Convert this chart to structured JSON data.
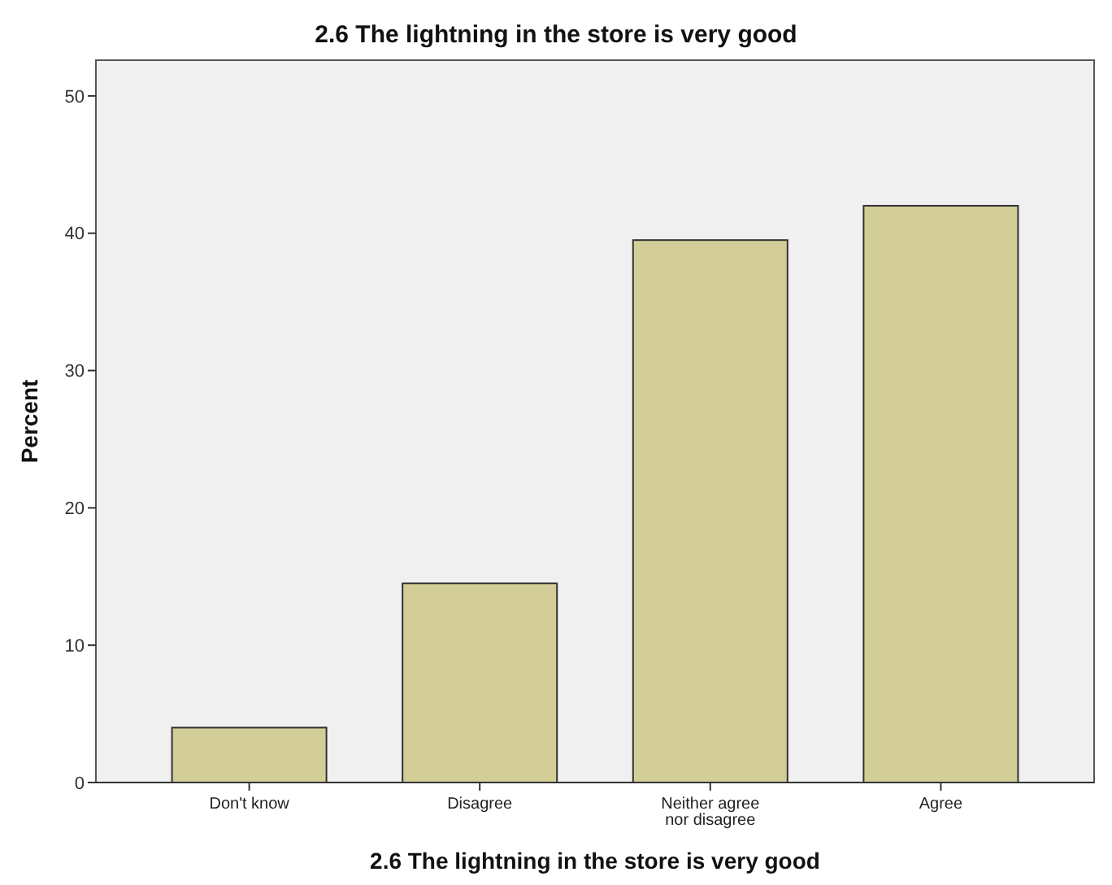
{
  "chart_data": {
    "type": "bar",
    "title": "2.6 The lightning in the store is very good",
    "xlabel": "2.6 The lightning in the store is very good",
    "ylabel": "Percent",
    "categories": [
      "Don't know",
      "Disagree",
      "Neither agree nor disagree",
      "Agree"
    ],
    "values": [
      4.0,
      14.5,
      39.5,
      42.0
    ],
    "color": "#d3ce98",
    "ylim": [
      0,
      52.6
    ],
    "yticks": [
      0,
      10,
      20,
      30,
      40,
      50
    ],
    "grid": false
  }
}
